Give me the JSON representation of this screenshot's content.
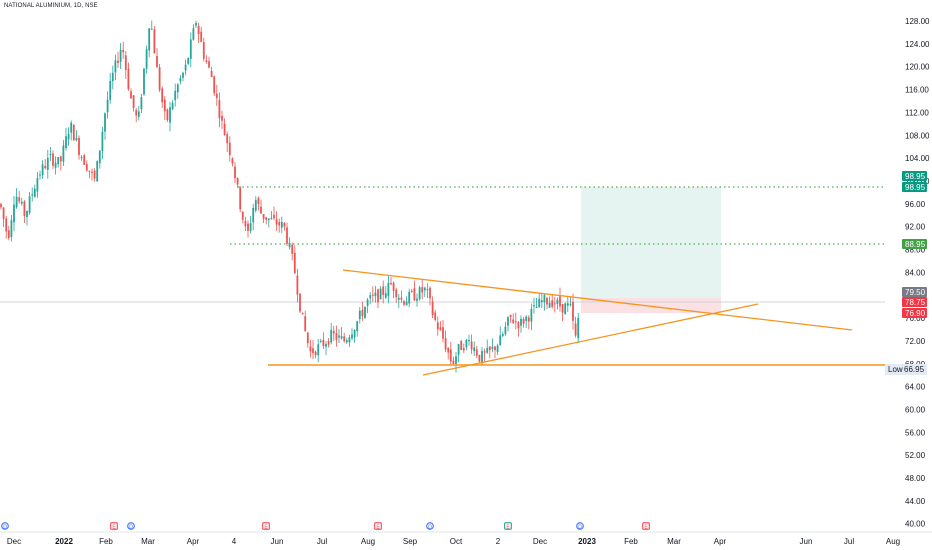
{
  "symbol_title": "NATIONAL ALUMINIUM, 1D, NSE",
  "price_axis": {
    "labels": [
      "128.00",
      "124.00",
      "120.00",
      "116.00",
      "112.00",
      "108.00",
      "104.00",
      "100.00",
      "96.00",
      "92.00",
      "88.00",
      "84.00",
      "80.00",
      "76.00",
      "72.00",
      "68.00",
      "64.00",
      "60.00",
      "56.00",
      "52.00",
      "48.00",
      "44.00",
      "40.00"
    ]
  },
  "time_axis": {
    "labels": [
      {
        "text": "Dec",
        "bold": false
      },
      {
        "text": "2022",
        "bold": true
      },
      {
        "text": "Feb",
        "bold": false
      },
      {
        "text": "Mar",
        "bold": false
      },
      {
        "text": "Apr",
        "bold": false
      },
      {
        "text": "4",
        "bold": false
      },
      {
        "text": "Jun",
        "bold": false
      },
      {
        "text": "Jul",
        "bold": false
      },
      {
        "text": "Aug",
        "bold": false
      },
      {
        "text": "Sep",
        "bold": false
      },
      {
        "text": "Oct",
        "bold": false
      },
      {
        "text": "2",
        "bold": false
      },
      {
        "text": "Dec",
        "bold": false
      },
      {
        "text": "2023",
        "bold": true
      },
      {
        "text": "Feb",
        "bold": false
      },
      {
        "text": "Mar",
        "bold": false
      },
      {
        "text": "Apr",
        "bold": false
      },
      {
        "text": "Jun",
        "bold": false
      },
      {
        "text": "Jul",
        "bold": false
      },
      {
        "text": "Aug",
        "bold": false
      }
    ]
  },
  "price_tags": [
    {
      "id": "target-upper",
      "text": "98.95",
      "color": "#089981"
    },
    {
      "id": "target-lower",
      "text": "98.95",
      "color": "#089981"
    },
    {
      "id": "level-mid",
      "text": "88.95",
      "color": "#43a047"
    },
    {
      "id": "last-price",
      "text": "79.50",
      "color": "#787b86"
    },
    {
      "id": "entry",
      "text": "78.75",
      "color": "#f23645"
    },
    {
      "id": "stop",
      "text": "76.90",
      "color": "#f23645"
    }
  ],
  "low_label": {
    "label": "Low",
    "value": "66.95"
  },
  "event_markers": [
    "D",
    "E",
    "D",
    "E",
    "E",
    "D",
    "E",
    "D",
    "E"
  ],
  "colors": {
    "up_candle": "#26a69a",
    "down_candle": "#ef5350",
    "trendline": "#f7931e",
    "dotted_level": "#4caf50",
    "target_zone": "#e6f4f1",
    "stop_zone": "#fbe1e3"
  }
}
